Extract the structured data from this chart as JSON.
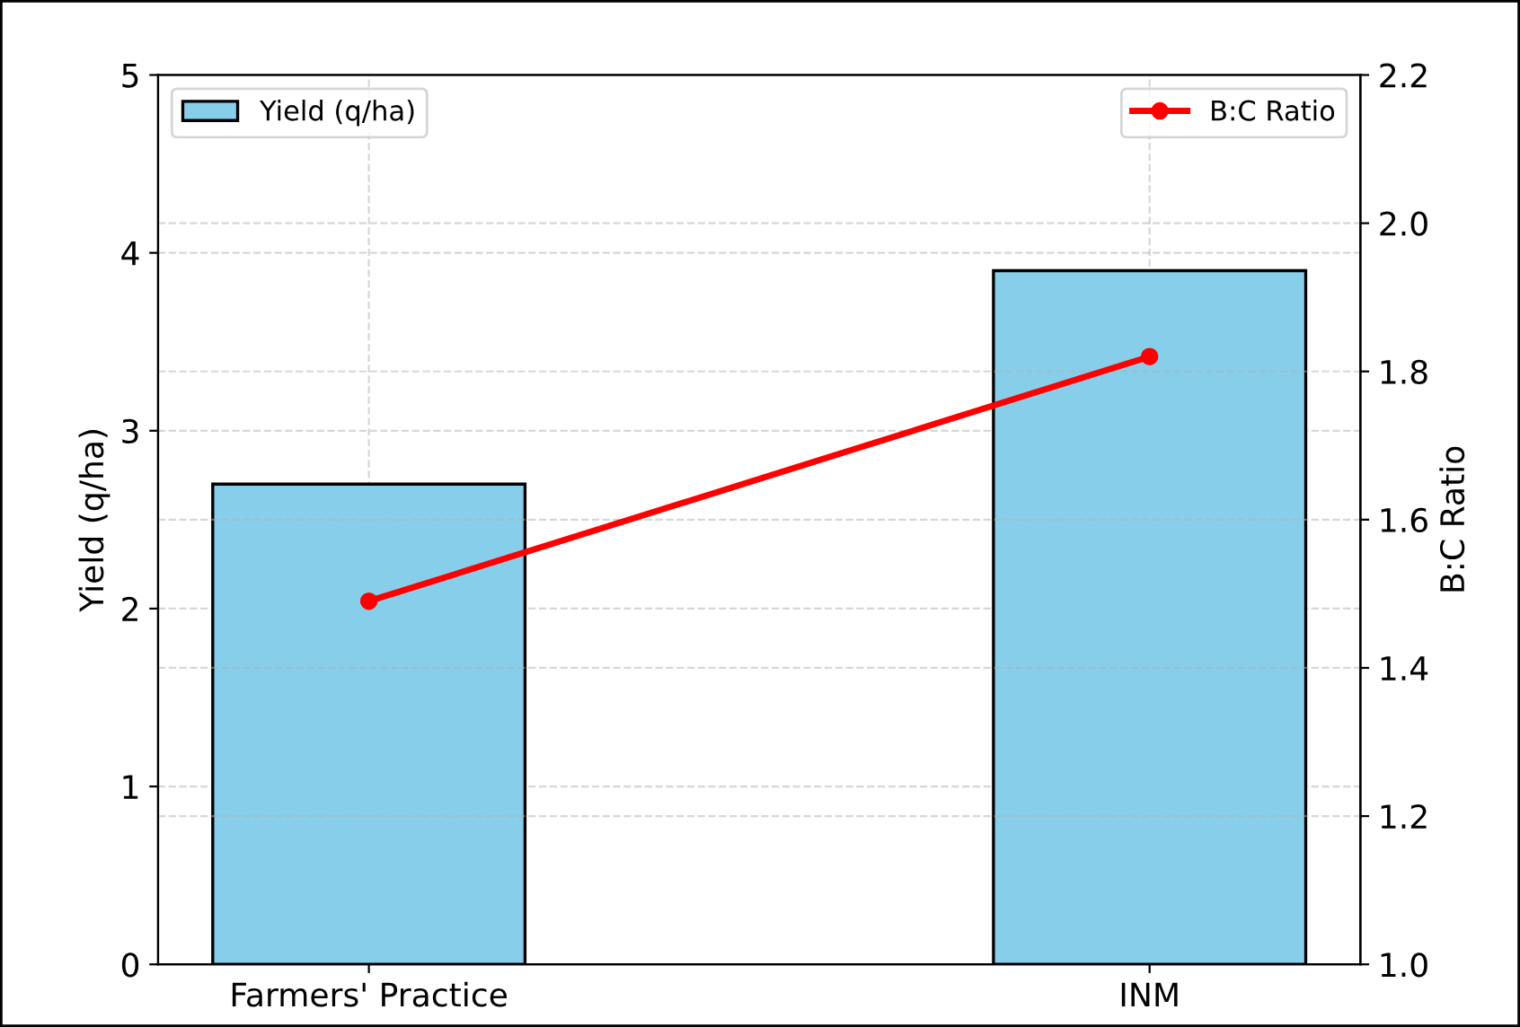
{
  "chart_data": {
    "type": "bar",
    "categories": [
      "Farmers' Practice",
      "INM"
    ],
    "ylabel": "Yield (q/ha)",
    "y2label": "B:C Ratio",
    "series": [
      {
        "name": "Yield (q/ha)",
        "color": "#87ceeb",
        "values": [
          2.7,
          3.9
        ]
      },
      {
        "name": "B:C Ratio",
        "type": "line",
        "axis": "y2",
        "color": "#ff0000",
        "values": [
          1.49,
          1.82
        ],
        "marker": "circle"
      }
    ],
    "ylim": [
      0,
      5
    ],
    "yticks": [
      0,
      1,
      2,
      3,
      4,
      5
    ],
    "y2lim": [
      1.0,
      2.2
    ],
    "y2ticks": [
      {
        "value": 1,
        "label": "1.0"
      },
      1.2,
      1.4,
      1.6,
      1.8,
      {
        "value": 2,
        "label": "2.0"
      },
      2.2
    ],
    "grid": true,
    "legend": "top"
  }
}
